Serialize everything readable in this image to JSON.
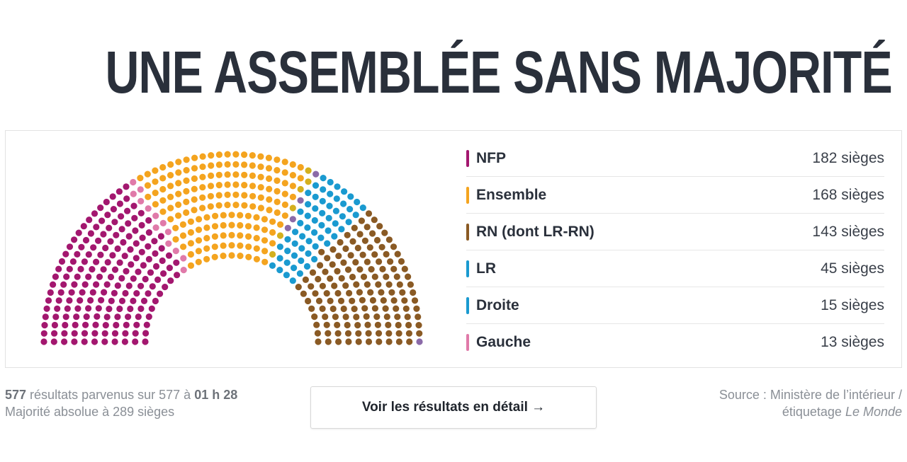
{
  "title": "UNE ASSEMBLÉE SANS MAJORITÉ",
  "chart_data": {
    "type": "hemicycle",
    "total_seats": 577,
    "legend_placement": "right",
    "series": [
      {
        "name": "NFP",
        "value": 182,
        "label": "182 sièges",
        "color": "#a3176f"
      },
      {
        "name": "Ensemble",
        "value": 168,
        "label": "168 sièges",
        "color": "#f4a41f"
      },
      {
        "name": "RN (dont LR-RN)",
        "value": 143,
        "label": "143 sièges",
        "color": "#8a5a24"
      },
      {
        "name": "LR",
        "value": 45,
        "label": "45 sièges",
        "color": "#1a9ad0"
      },
      {
        "name": "Droite",
        "value": 15,
        "label": "15 sièges",
        "color": "#1a9ad0"
      },
      {
        "name": "Gauche",
        "value": 13,
        "label": "13 sièges",
        "color": "#e07aa9"
      }
    ],
    "unlabeled_groups": [
      {
        "value": 6,
        "color": "#d4b01e"
      },
      {
        "value": 5,
        "color": "#8b6aa8"
      }
    ],
    "seat_order_left_to_right": [
      "NFP",
      "Gauche",
      "Ensemble",
      "yellow",
      "purple",
      "LR",
      "Droite",
      "RN (dont LR-RN)",
      "purple-end"
    ]
  },
  "footer": {
    "count_bold": "577",
    "count_text": " résultats parvenus sur 577 à ",
    "time_bold": "01 h 28",
    "majority": "Majorité absolue à 289 sièges",
    "button": "Voir les résultats en détail →",
    "source_line1": "Source : Ministère de l’intérieur /",
    "source_line2": "étiquetage ",
    "source_italic": "Le Monde"
  }
}
